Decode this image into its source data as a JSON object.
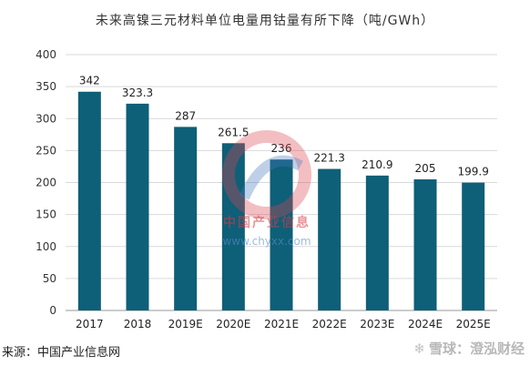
{
  "title": "未来高镍三元材料单位电量用钴量有所下降（吨/GWh）",
  "chart_data": {
    "type": "bar",
    "categories": [
      "2017",
      "2018",
      "2019E",
      "2020E",
      "2021E",
      "2022E",
      "2023E",
      "2024E",
      "2025E"
    ],
    "values": [
      342,
      323.3,
      287,
      261.5,
      236,
      221.3,
      210.9,
      205,
      199.9
    ],
    "value_labels": [
      "342",
      "323.3",
      "287",
      "261.5",
      "236",
      "221.3",
      "210.9",
      "205",
      "199.9"
    ],
    "y_ticks": [
      "0",
      "50",
      "100",
      "150",
      "200",
      "250",
      "300",
      "350",
      "400"
    ],
    "ylim": [
      0,
      400
    ],
    "bar_color": "#0e5f78",
    "grid": true,
    "legend": "none"
  },
  "source": "来源：中国产业信息网",
  "watermark": {
    "icon": "snowball-icon",
    "text": "雪球：澄泓财经"
  },
  "center_logo": {
    "text": "中国产业信息",
    "url": "www.chyxx.com"
  }
}
